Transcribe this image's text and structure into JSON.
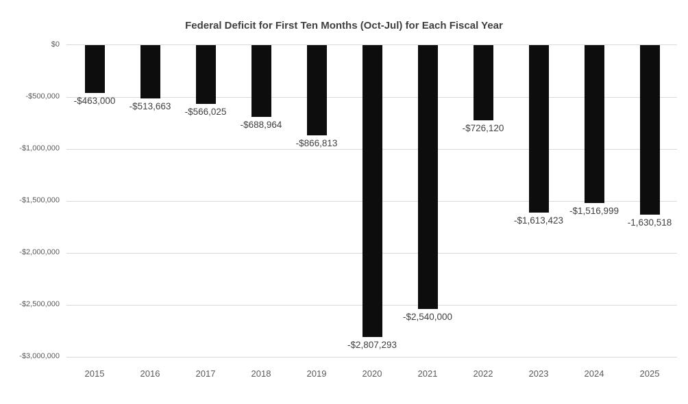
{
  "chart_data": {
    "type": "bar",
    "title": "Federal Deficit for First Ten Months (Oct-Jul) for Each Fiscal Year",
    "xlabel": "",
    "ylabel": "",
    "categories": [
      "2015",
      "2016",
      "2017",
      "2018",
      "2019",
      "2020",
      "2021",
      "2022",
      "2023",
      "2024",
      "2025"
    ],
    "values": [
      -463000,
      -513663,
      -566025,
      -688964,
      -866813,
      -2807293,
      -2540000,
      -726120,
      -1613423,
      -1516999,
      -1630518
    ],
    "data_labels": [
      "-$463,000",
      "-$513,663",
      "-$566,025",
      "-$688,964",
      "-$866,813",
      "-$2,807,293",
      "-$2,540,000",
      "-$726,120",
      "-$1,613,423",
      "-$1,516,999",
      "-1,630,518"
    ],
    "y_ticks": [
      {
        "value": 0,
        "label": "$0"
      },
      {
        "value": -500000,
        "label": "-$500,000"
      },
      {
        "value": -1000000,
        "label": "-$1,000,000"
      },
      {
        "value": -1500000,
        "label": "-$1,500,000"
      },
      {
        "value": -2000000,
        "label": "-$2,000,000"
      },
      {
        "value": -2500000,
        "label": "-$2,500,000"
      },
      {
        "value": -3000000,
        "label": "-$3,000,000"
      }
    ],
    "ylim": [
      -3000000,
      0
    ],
    "grid": true,
    "legend": false,
    "colors": {
      "bar": "#0d0d0d",
      "gridline": "#d9d9d9",
      "title_text": "#3f3f3f",
      "axis_text": "#595959",
      "data_label_text": "#404040",
      "background": "#ffffff"
    }
  }
}
